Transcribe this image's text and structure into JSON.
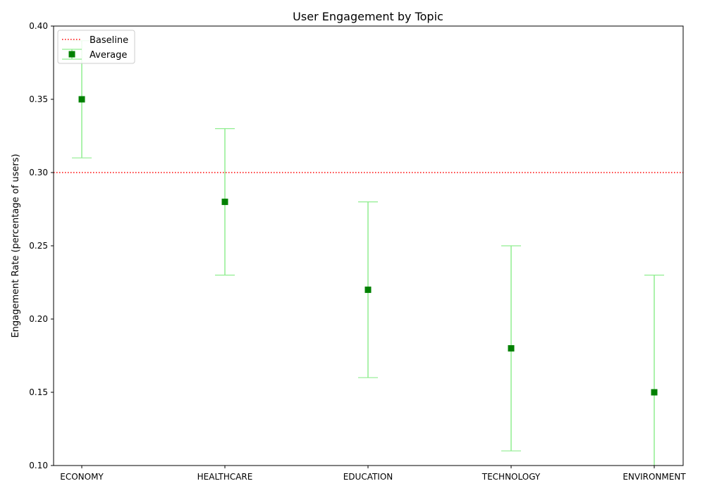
{
  "chart_data": {
    "type": "scatter",
    "title": "User Engagement by Topic",
    "xlabel": "",
    "ylabel": "Engagement Rate (percentage of users)",
    "categories": [
      "ECONOMY",
      "HEALTHCARE",
      "EDUCATION",
      "TECHNOLOGY",
      "ENVIRONMENT"
    ],
    "series": [
      {
        "name": "Average",
        "values": [
          0.35,
          0.28,
          0.22,
          0.18,
          0.15
        ],
        "error_low": [
          0.31,
          0.23,
          0.16,
          0.11,
          0.08
        ],
        "error_high": [
          0.39,
          0.33,
          0.28,
          0.25,
          0.23
        ],
        "marker": "square",
        "marker_color": "#008000",
        "error_color": "#90ee90"
      }
    ],
    "reference_line": {
      "name": "Baseline",
      "y": 0.3,
      "style": "dotted",
      "color": "#ff0000"
    },
    "ylim": [
      0.1,
      0.4
    ],
    "yticks": [
      "0.10",
      "0.15",
      "0.20",
      "0.25",
      "0.30",
      "0.35",
      "0.40"
    ],
    "grid": false,
    "legend_position": "top-left",
    "legend_entries": [
      "Baseline",
      "Average"
    ]
  }
}
